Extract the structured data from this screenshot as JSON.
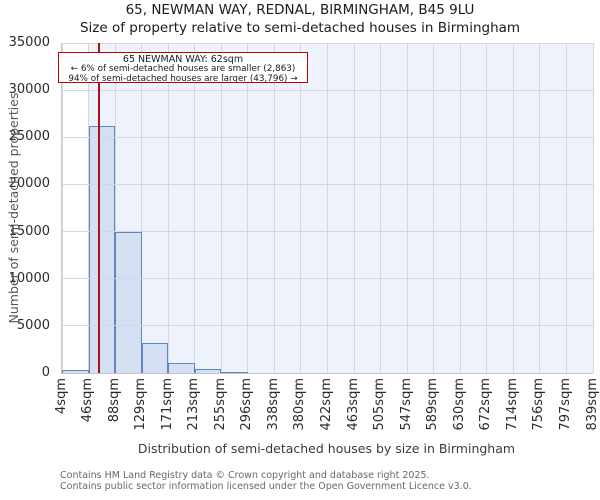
{
  "title": "65, NEWMAN WAY, REDNAL, BIRMINGHAM, B45 9LU",
  "subtitle": "Size of property relative to semi-detached houses in Birmingham",
  "annotation": {
    "line1": "65 NEWMAN WAY: 62sqm",
    "line2": "← 6% of semi-detached houses are smaller (2,863)",
    "line3": "94% of semi-detached houses are larger (43,796) →"
  },
  "footer": {
    "line1": "Contains HM Land Registry data © Crown copyright and database right 2025.",
    "line2": "Contains public sector information licensed under the Open Government Licence v3.0."
  },
  "colors": {
    "bar_fill": "#d4dff2",
    "bar_border": "#5b87c5",
    "marker_red": "#a81317",
    "callout_border": "#c00000",
    "shade": "#eef2fa",
    "grid": "#d3d7e0"
  },
  "chart_data": {
    "type": "bar",
    "title": "65, NEWMAN WAY, REDNAL, BIRMINGHAM, B45 9LU — Size of property relative to semi-detached houses in Birmingham",
    "xlabel": "Distribution of semi-detached houses by size in Birmingham",
    "ylabel": "Number of semi-detached properties",
    "categories": [
      "4sqm",
      "46sqm",
      "88sqm",
      "129sqm",
      "171sqm",
      "213sqm",
      "255sqm",
      "296sqm",
      "338sqm",
      "380sqm",
      "422sqm",
      "463sqm",
      "505sqm",
      "547sqm",
      "589sqm",
      "630sqm",
      "672sqm",
      "714sqm",
      "756sqm",
      "797sqm",
      "839sqm"
    ],
    "values": [
      350,
      26250,
      14950,
      3200,
      1050,
      420,
      130,
      0,
      0,
      0,
      0,
      0,
      0,
      0,
      0,
      0,
      0,
      0,
      0,
      0
    ],
    "yticks": [
      0,
      5000,
      10000,
      15000,
      20000,
      25000,
      30000,
      35000
    ],
    "ylim": [
      0,
      35000
    ],
    "xrange_sqm": [
      4,
      839
    ],
    "bin_width_sqm": 41.75,
    "marker_value_sqm": 62,
    "shaded_region_sqm": [
      46,
      839
    ],
    "smaller_count": "2,863",
    "larger_count": "43,796",
    "smaller_pct": "6%",
    "larger_pct": "94%",
    "grid": true,
    "legend": false
  }
}
